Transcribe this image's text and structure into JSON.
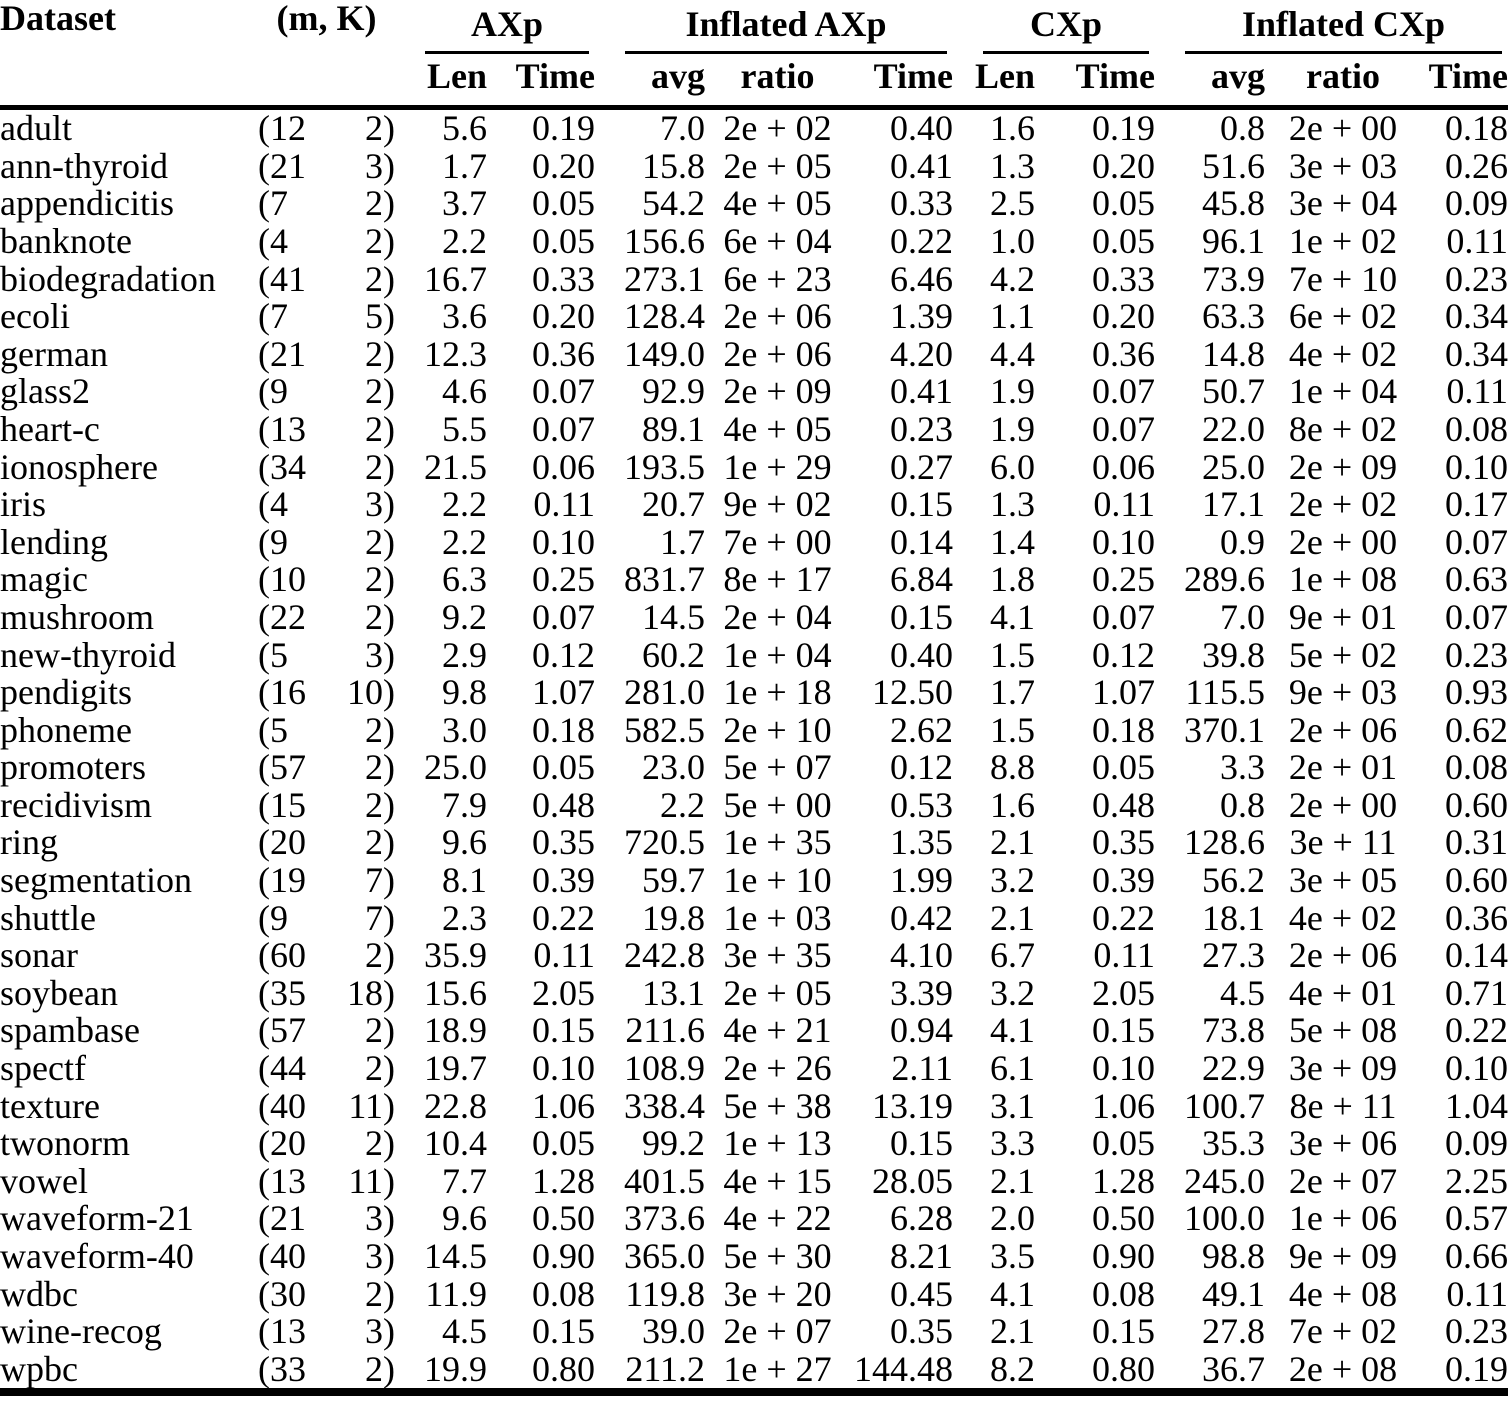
{
  "page": {
    "background_color": "#ffffff",
    "text_color": "#000000",
    "rule_color": "#000000"
  },
  "table": {
    "header": {
      "dataset": "Dataset",
      "mk": "(m, K)",
      "groups": [
        {
          "label": "AXp",
          "sub": [
            "Len",
            "Time"
          ]
        },
        {
          "label": "Inflated AXp",
          "sub": [
            "avg",
            "ratio",
            "Time"
          ]
        },
        {
          "label": "CXp",
          "sub": [
            "Len",
            "Time"
          ]
        },
        {
          "label": "Inflated CXp",
          "sub": [
            "avg",
            "ratio",
            "Time"
          ]
        }
      ]
    },
    "rows": [
      {
        "dataset": "adult",
        "m": "(12",
        "k": "2)",
        "axp_len": "5.6",
        "axp_time": "0.19",
        "iaxp_avg": "7.0",
        "iaxp_ratio": "2e + 02",
        "iaxp_time": "0.40",
        "cxp_len": "1.6",
        "cxp_time": "0.19",
        "icxp_avg": "0.8",
        "icxp_ratio": "2e + 00",
        "icxp_time": "0.18"
      },
      {
        "dataset": "ann-thyroid",
        "m": "(21",
        "k": "3)",
        "axp_len": "1.7",
        "axp_time": "0.20",
        "iaxp_avg": "15.8",
        "iaxp_ratio": "2e + 05",
        "iaxp_time": "0.41",
        "cxp_len": "1.3",
        "cxp_time": "0.20",
        "icxp_avg": "51.6",
        "icxp_ratio": "3e + 03",
        "icxp_time": "0.26"
      },
      {
        "dataset": "appendicitis",
        "m": "(7",
        "k": "2)",
        "axp_len": "3.7",
        "axp_time": "0.05",
        "iaxp_avg": "54.2",
        "iaxp_ratio": "4e + 05",
        "iaxp_time": "0.33",
        "cxp_len": "2.5",
        "cxp_time": "0.05",
        "icxp_avg": "45.8",
        "icxp_ratio": "3e + 04",
        "icxp_time": "0.09"
      },
      {
        "dataset": "banknote",
        "m": "(4",
        "k": "2)",
        "axp_len": "2.2",
        "axp_time": "0.05",
        "iaxp_avg": "156.6",
        "iaxp_ratio": "6e + 04",
        "iaxp_time": "0.22",
        "cxp_len": "1.0",
        "cxp_time": "0.05",
        "icxp_avg": "96.1",
        "icxp_ratio": "1e + 02",
        "icxp_time": "0.11"
      },
      {
        "dataset": "biodegradation",
        "m": "(41",
        "k": "2)",
        "axp_len": "16.7",
        "axp_time": "0.33",
        "iaxp_avg": "273.1",
        "iaxp_ratio": "6e + 23",
        "iaxp_time": "6.46",
        "cxp_len": "4.2",
        "cxp_time": "0.33",
        "icxp_avg": "73.9",
        "icxp_ratio": "7e + 10",
        "icxp_time": "0.23"
      },
      {
        "dataset": "ecoli",
        "m": "(7",
        "k": "5)",
        "axp_len": "3.6",
        "axp_time": "0.20",
        "iaxp_avg": "128.4",
        "iaxp_ratio": "2e + 06",
        "iaxp_time": "1.39",
        "cxp_len": "1.1",
        "cxp_time": "0.20",
        "icxp_avg": "63.3",
        "icxp_ratio": "6e + 02",
        "icxp_time": "0.34"
      },
      {
        "dataset": "german",
        "m": "(21",
        "k": "2)",
        "axp_len": "12.3",
        "axp_time": "0.36",
        "iaxp_avg": "149.0",
        "iaxp_ratio": "2e + 06",
        "iaxp_time": "4.20",
        "cxp_len": "4.4",
        "cxp_time": "0.36",
        "icxp_avg": "14.8",
        "icxp_ratio": "4e + 02",
        "icxp_time": "0.34"
      },
      {
        "dataset": "glass2",
        "m": "(9",
        "k": "2)",
        "axp_len": "4.6",
        "axp_time": "0.07",
        "iaxp_avg": "92.9",
        "iaxp_ratio": "2e + 09",
        "iaxp_time": "0.41",
        "cxp_len": "1.9",
        "cxp_time": "0.07",
        "icxp_avg": "50.7",
        "icxp_ratio": "1e + 04",
        "icxp_time": "0.11"
      },
      {
        "dataset": "heart-c",
        "m": "(13",
        "k": "2)",
        "axp_len": "5.5",
        "axp_time": "0.07",
        "iaxp_avg": "89.1",
        "iaxp_ratio": "4e + 05",
        "iaxp_time": "0.23",
        "cxp_len": "1.9",
        "cxp_time": "0.07",
        "icxp_avg": "22.0",
        "icxp_ratio": "8e + 02",
        "icxp_time": "0.08"
      },
      {
        "dataset": "ionosphere",
        "m": "(34",
        "k": "2)",
        "axp_len": "21.5",
        "axp_time": "0.06",
        "iaxp_avg": "193.5",
        "iaxp_ratio": "1e + 29",
        "iaxp_time": "0.27",
        "cxp_len": "6.0",
        "cxp_time": "0.06",
        "icxp_avg": "25.0",
        "icxp_ratio": "2e + 09",
        "icxp_time": "0.10"
      },
      {
        "dataset": "iris",
        "m": "(4",
        "k": "3)",
        "axp_len": "2.2",
        "axp_time": "0.11",
        "iaxp_avg": "20.7",
        "iaxp_ratio": "9e + 02",
        "iaxp_time": "0.15",
        "cxp_len": "1.3",
        "cxp_time": "0.11",
        "icxp_avg": "17.1",
        "icxp_ratio": "2e + 02",
        "icxp_time": "0.17"
      },
      {
        "dataset": "lending",
        "m": "(9",
        "k": "2)",
        "axp_len": "2.2",
        "axp_time": "0.10",
        "iaxp_avg": "1.7",
        "iaxp_ratio": "7e + 00",
        "iaxp_time": "0.14",
        "cxp_len": "1.4",
        "cxp_time": "0.10",
        "icxp_avg": "0.9",
        "icxp_ratio": "2e + 00",
        "icxp_time": "0.07"
      },
      {
        "dataset": "magic",
        "m": "(10",
        "k": "2)",
        "axp_len": "6.3",
        "axp_time": "0.25",
        "iaxp_avg": "831.7",
        "iaxp_ratio": "8e + 17",
        "iaxp_time": "6.84",
        "cxp_len": "1.8",
        "cxp_time": "0.25",
        "icxp_avg": "289.6",
        "icxp_ratio": "1e + 08",
        "icxp_time": "0.63"
      },
      {
        "dataset": "mushroom",
        "m": "(22",
        "k": "2)",
        "axp_len": "9.2",
        "axp_time": "0.07",
        "iaxp_avg": "14.5",
        "iaxp_ratio": "2e + 04",
        "iaxp_time": "0.15",
        "cxp_len": "4.1",
        "cxp_time": "0.07",
        "icxp_avg": "7.0",
        "icxp_ratio": "9e + 01",
        "icxp_time": "0.07"
      },
      {
        "dataset": "new-thyroid",
        "m": "(5",
        "k": "3)",
        "axp_len": "2.9",
        "axp_time": "0.12",
        "iaxp_avg": "60.2",
        "iaxp_ratio": "1e + 04",
        "iaxp_time": "0.40",
        "cxp_len": "1.5",
        "cxp_time": "0.12",
        "icxp_avg": "39.8",
        "icxp_ratio": "5e + 02",
        "icxp_time": "0.23"
      },
      {
        "dataset": "pendigits",
        "m": "(16",
        "k": "10)",
        "axp_len": "9.8",
        "axp_time": "1.07",
        "iaxp_avg": "281.0",
        "iaxp_ratio": "1e + 18",
        "iaxp_time": "12.50",
        "cxp_len": "1.7",
        "cxp_time": "1.07",
        "icxp_avg": "115.5",
        "icxp_ratio": "9e + 03",
        "icxp_time": "0.93"
      },
      {
        "dataset": "phoneme",
        "m": "(5",
        "k": "2)",
        "axp_len": "3.0",
        "axp_time": "0.18",
        "iaxp_avg": "582.5",
        "iaxp_ratio": "2e + 10",
        "iaxp_time": "2.62",
        "cxp_len": "1.5",
        "cxp_time": "0.18",
        "icxp_avg": "370.1",
        "icxp_ratio": "2e + 06",
        "icxp_time": "0.62"
      },
      {
        "dataset": "promoters",
        "m": "(57",
        "k": "2)",
        "axp_len": "25.0",
        "axp_time": "0.05",
        "iaxp_avg": "23.0",
        "iaxp_ratio": "5e + 07",
        "iaxp_time": "0.12",
        "cxp_len": "8.8",
        "cxp_time": "0.05",
        "icxp_avg": "3.3",
        "icxp_ratio": "2e + 01",
        "icxp_time": "0.08"
      },
      {
        "dataset": "recidivism",
        "m": "(15",
        "k": "2)",
        "axp_len": "7.9",
        "axp_time": "0.48",
        "iaxp_avg": "2.2",
        "iaxp_ratio": "5e + 00",
        "iaxp_time": "0.53",
        "cxp_len": "1.6",
        "cxp_time": "0.48",
        "icxp_avg": "0.8",
        "icxp_ratio": "2e + 00",
        "icxp_time": "0.60"
      },
      {
        "dataset": "ring",
        "m": "(20",
        "k": "2)",
        "axp_len": "9.6",
        "axp_time": "0.35",
        "iaxp_avg": "720.5",
        "iaxp_ratio": "1e + 35",
        "iaxp_time": "1.35",
        "cxp_len": "2.1",
        "cxp_time": "0.35",
        "icxp_avg": "128.6",
        "icxp_ratio": "3e + 11",
        "icxp_time": "0.31"
      },
      {
        "dataset": "segmentation",
        "m": "(19",
        "k": "7)",
        "axp_len": "8.1",
        "axp_time": "0.39",
        "iaxp_avg": "59.7",
        "iaxp_ratio": "1e + 10",
        "iaxp_time": "1.99",
        "cxp_len": "3.2",
        "cxp_time": "0.39",
        "icxp_avg": "56.2",
        "icxp_ratio": "3e + 05",
        "icxp_time": "0.60"
      },
      {
        "dataset": "shuttle",
        "m": "(9",
        "k": "7)",
        "axp_len": "2.3",
        "axp_time": "0.22",
        "iaxp_avg": "19.8",
        "iaxp_ratio": "1e + 03",
        "iaxp_time": "0.42",
        "cxp_len": "2.1",
        "cxp_time": "0.22",
        "icxp_avg": "18.1",
        "icxp_ratio": "4e + 02",
        "icxp_time": "0.36"
      },
      {
        "dataset": "sonar",
        "m": "(60",
        "k": "2)",
        "axp_len": "35.9",
        "axp_time": "0.11",
        "iaxp_avg": "242.8",
        "iaxp_ratio": "3e + 35",
        "iaxp_time": "4.10",
        "cxp_len": "6.7",
        "cxp_time": "0.11",
        "icxp_avg": "27.3",
        "icxp_ratio": "2e + 06",
        "icxp_time": "0.14"
      },
      {
        "dataset": "soybean",
        "m": "(35",
        "k": "18)",
        "axp_len": "15.6",
        "axp_time": "2.05",
        "iaxp_avg": "13.1",
        "iaxp_ratio": "2e + 05",
        "iaxp_time": "3.39",
        "cxp_len": "3.2",
        "cxp_time": "2.05",
        "icxp_avg": "4.5",
        "icxp_ratio": "4e + 01",
        "icxp_time": "0.71"
      },
      {
        "dataset": "spambase",
        "m": "(57",
        "k": "2)",
        "axp_len": "18.9",
        "axp_time": "0.15",
        "iaxp_avg": "211.6",
        "iaxp_ratio": "4e + 21",
        "iaxp_time": "0.94",
        "cxp_len": "4.1",
        "cxp_time": "0.15",
        "icxp_avg": "73.8",
        "icxp_ratio": "5e + 08",
        "icxp_time": "0.22"
      },
      {
        "dataset": "spectf",
        "m": "(44",
        "k": "2)",
        "axp_len": "19.7",
        "axp_time": "0.10",
        "iaxp_avg": "108.9",
        "iaxp_ratio": "2e + 26",
        "iaxp_time": "2.11",
        "cxp_len": "6.1",
        "cxp_time": "0.10",
        "icxp_avg": "22.9",
        "icxp_ratio": "3e + 09",
        "icxp_time": "0.10"
      },
      {
        "dataset": "texture",
        "m": "(40",
        "k": "11)",
        "axp_len": "22.8",
        "axp_time": "1.06",
        "iaxp_avg": "338.4",
        "iaxp_ratio": "5e + 38",
        "iaxp_time": "13.19",
        "cxp_len": "3.1",
        "cxp_time": "1.06",
        "icxp_avg": "100.7",
        "icxp_ratio": "8e + 11",
        "icxp_time": "1.04"
      },
      {
        "dataset": "twonorm",
        "m": "(20",
        "k": "2)",
        "axp_len": "10.4",
        "axp_time": "0.05",
        "iaxp_avg": "99.2",
        "iaxp_ratio": "1e + 13",
        "iaxp_time": "0.15",
        "cxp_len": "3.3",
        "cxp_time": "0.05",
        "icxp_avg": "35.3",
        "icxp_ratio": "3e + 06",
        "icxp_time": "0.09"
      },
      {
        "dataset": "vowel",
        "m": "(13",
        "k": "11)",
        "axp_len": "7.7",
        "axp_time": "1.28",
        "iaxp_avg": "401.5",
        "iaxp_ratio": "4e + 15",
        "iaxp_time": "28.05",
        "cxp_len": "2.1",
        "cxp_time": "1.28",
        "icxp_avg": "245.0",
        "icxp_ratio": "2e + 07",
        "icxp_time": "2.25"
      },
      {
        "dataset": "waveform-21",
        "m": "(21",
        "k": "3)",
        "axp_len": "9.6",
        "axp_time": "0.50",
        "iaxp_avg": "373.6",
        "iaxp_ratio": "4e + 22",
        "iaxp_time": "6.28",
        "cxp_len": "2.0",
        "cxp_time": "0.50",
        "icxp_avg": "100.0",
        "icxp_ratio": "1e + 06",
        "icxp_time": "0.57"
      },
      {
        "dataset": "waveform-40",
        "m": "(40",
        "k": "3)",
        "axp_len": "14.5",
        "axp_time": "0.90",
        "iaxp_avg": "365.0",
        "iaxp_ratio": "5e + 30",
        "iaxp_time": "8.21",
        "cxp_len": "3.5",
        "cxp_time": "0.90",
        "icxp_avg": "98.8",
        "icxp_ratio": "9e + 09",
        "icxp_time": "0.66"
      },
      {
        "dataset": "wdbc",
        "m": "(30",
        "k": "2)",
        "axp_len": "11.9",
        "axp_time": "0.08",
        "iaxp_avg": "119.8",
        "iaxp_ratio": "3e + 20",
        "iaxp_time": "0.45",
        "cxp_len": "4.1",
        "cxp_time": "0.08",
        "icxp_avg": "49.1",
        "icxp_ratio": "4e + 08",
        "icxp_time": "0.11"
      },
      {
        "dataset": "wine-recog",
        "m": "(13",
        "k": "3)",
        "axp_len": "4.5",
        "axp_time": "0.15",
        "iaxp_avg": "39.0",
        "iaxp_ratio": "2e + 07",
        "iaxp_time": "0.35",
        "cxp_len": "2.1",
        "cxp_time": "0.15",
        "icxp_avg": "27.8",
        "icxp_ratio": "7e + 02",
        "icxp_time": "0.23"
      },
      {
        "dataset": "wpbc",
        "m": "(33",
        "k": "2)",
        "axp_len": "19.9",
        "axp_time": "0.80",
        "iaxp_avg": "211.2",
        "iaxp_ratio": "1e + 27",
        "iaxp_time": "144.48",
        "cxp_len": "8.2",
        "cxp_time": "0.80",
        "icxp_avg": "36.7",
        "icxp_ratio": "2e + 08",
        "icxp_time": "0.19"
      }
    ]
  }
}
